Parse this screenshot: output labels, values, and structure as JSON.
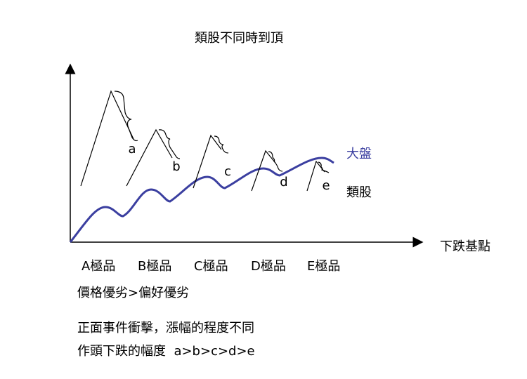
{
  "title": "類股不同時到頂",
  "legend": {
    "market": "大盤",
    "sector": "類股"
  },
  "x_axis_label": "下跌基點",
  "peaks": [
    "a",
    "b",
    "c",
    "d",
    "e"
  ],
  "categories": [
    "A極品",
    "B極品",
    "C極品",
    "D極品",
    "E極品"
  ],
  "notes": [
    "價格優劣>偏好優劣",
    "正面事件衝擊，漲幅的程度不同",
    "作頭下跌的幅度  a>b>c>d>e"
  ]
}
